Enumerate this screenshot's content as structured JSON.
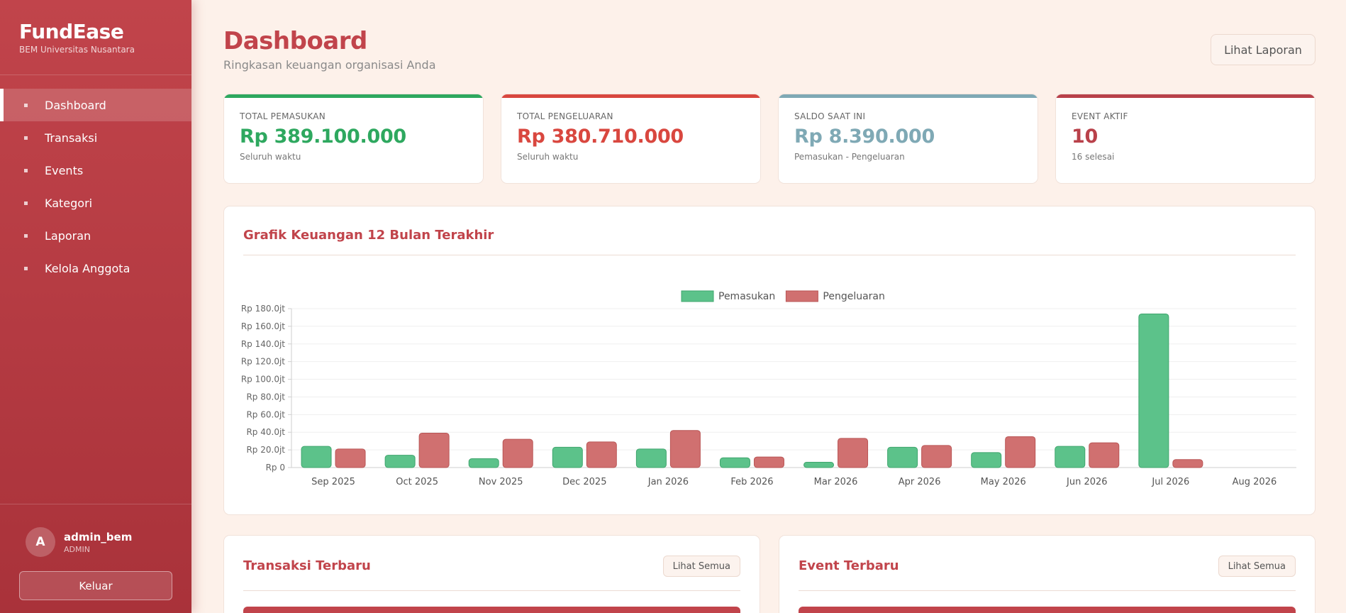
{
  "brand": {
    "title": "FundEase",
    "subtitle": "BEM Universitas Nusantara"
  },
  "nav": [
    {
      "label": "Dashboard",
      "active": true
    },
    {
      "label": "Transaksi",
      "active": false
    },
    {
      "label": "Events",
      "active": false
    },
    {
      "label": "Kategori",
      "active": false
    },
    {
      "label": "Laporan",
      "active": false
    },
    {
      "label": "Kelola Anggota",
      "active": false
    }
  ],
  "user": {
    "initial": "A",
    "name": "admin_bem",
    "role": "ADMIN",
    "logout_label": "Keluar"
  },
  "header": {
    "title": "Dashboard",
    "subtitle": "Ringkasan keuangan organisasi Anda",
    "report_button": "Lihat Laporan"
  },
  "stats": [
    {
      "label": "TOTAL PEMASUKAN",
      "value": "Rp 389.100.000",
      "note": "Seluruh waktu",
      "color": "#2ea85f"
    },
    {
      "label": "TOTAL PENGELUARAN",
      "value": "Rp 380.710.000",
      "note": "Seluruh waktu",
      "color": "#d9473f"
    },
    {
      "label": "SALDO SAAT INI",
      "value": "Rp 8.390.000",
      "note": "Pemasukan - Pengeluaran",
      "color": "#7fa9b5"
    },
    {
      "label": "EVENT AKTIF",
      "value": "10",
      "note": "16 selesai",
      "color": "#b9414a"
    }
  ],
  "chart_card": {
    "title": "Grafik Keuangan 12 Bulan Terakhir"
  },
  "chart_data": {
    "type": "bar",
    "categories": [
      "Sep 2025",
      "Oct 2025",
      "Nov 2025",
      "Dec 2025",
      "Jan 2026",
      "Feb 2026",
      "Mar 2026",
      "Apr 2026",
      "May 2026",
      "Jun 2026",
      "Jul 2026",
      "Aug 2026"
    ],
    "series": [
      {
        "name": "Pemasukan",
        "color": "#5cc28a",
        "values": [
          24,
          14,
          10,
          23,
          21,
          11,
          6,
          23,
          17,
          24,
          174,
          0
        ]
      },
      {
        "name": "Pengeluaran",
        "color": "#d07070",
        "values": [
          21,
          39,
          32,
          29,
          42,
          12,
          33,
          25,
          35,
          28,
          9,
          0
        ]
      }
    ],
    "yticks": [
      "Rp 0",
      "Rp 20.0jt",
      "Rp 40.0jt",
      "Rp 60.0jt",
      "Rp 80.0jt",
      "Rp 100.0jt",
      "Rp 120.0jt",
      "Rp 140.0jt",
      "Rp 160.0jt",
      "Rp 180.0jt"
    ],
    "ylim": [
      0,
      180
    ],
    "unit": "jt",
    "grid": true,
    "legend": "top-center"
  },
  "transactions_card": {
    "title": "Transaksi Terbaru",
    "button": "Lihat Semua"
  },
  "events_card": {
    "title": "Event Terbaru",
    "button": "Lihat Semua"
  }
}
